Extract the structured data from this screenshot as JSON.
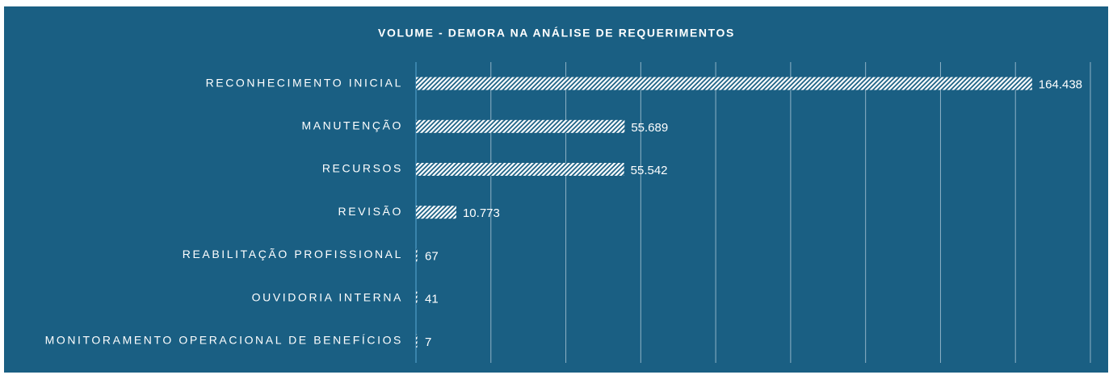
{
  "chart_data": {
    "type": "hbar",
    "title": "VOLUME - DEMORA NA ANÁLISE DE REQUERIMENTOS",
    "categories": [
      "RECONHECIMENTO INICIAL",
      "MANUTENÇÃO",
      "RECURSOS",
      "REVISÃO",
      "REABILITAÇÃO PROFISSIONAL",
      "OUVIDORIA INTERNA",
      "MONITORAMENTO OPERACIONAL DE BENEFÍCIOS"
    ],
    "values": [
      164438,
      55689,
      55542,
      10773,
      67,
      41,
      7
    ],
    "value_labels": [
      "164.438",
      "55.689",
      "55.542",
      "10.773",
      "67",
      "41",
      "7"
    ],
    "color": "#ffffff",
    "xlim": [
      0,
      180000
    ],
    "xticks": [
      0,
      20000,
      40000,
      60000,
      80000,
      100000,
      120000,
      140000,
      160000,
      180000
    ],
    "grid": true
  }
}
